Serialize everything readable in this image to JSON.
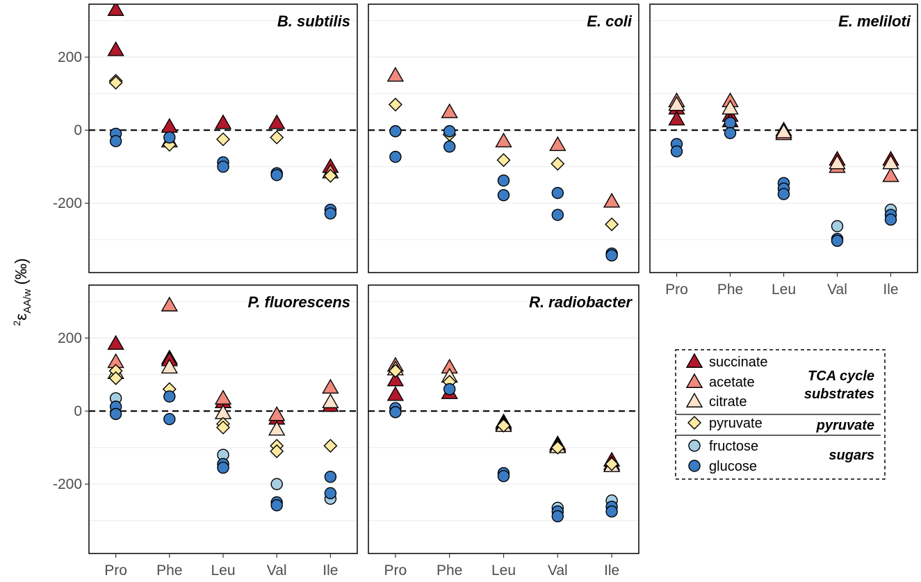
{
  "chart_data": {
    "type": "scatter",
    "ylabel": {
      "base": "2",
      "symbol": "ε",
      "sub": "AA/w",
      "unit": "(‰)"
    },
    "categories": [
      "Pro",
      "Phe",
      "Leu",
      "Val",
      "Ile"
    ],
    "ylim": [
      -390,
      345
    ],
    "yticks": [
      200,
      0,
      -200
    ],
    "ytick_labels": [
      "200",
      "0",
      "-200"
    ],
    "reference_line": 0,
    "colors": {
      "succinate": "#b2182b",
      "acetate": "#ef8a7c",
      "citrate": "#fde3cc",
      "pyruvate": "#fde9a1",
      "fructose": "#a6cee3",
      "glucose": "#3a7cc4"
    },
    "series_order": [
      "succinate",
      "acetate",
      "citrate",
      "pyruvate",
      "fructose",
      "glucose"
    ],
    "legend": {
      "items": [
        {
          "key": "succinate",
          "label": "succinate",
          "shape": "triangle"
        },
        {
          "key": "acetate",
          "label": "acetate",
          "shape": "triangle"
        },
        {
          "key": "citrate",
          "label": "citrate",
          "shape": "triangle"
        },
        {
          "key": "pyruvate",
          "label": "pyruvate",
          "shape": "diamond"
        },
        {
          "key": "fructose",
          "label": "fructose",
          "shape": "circle"
        },
        {
          "key": "glucose",
          "label": "glucose",
          "shape": "circle"
        }
      ],
      "groups": [
        {
          "lines": [
            "TCA cycle",
            "substrates"
          ]
        },
        {
          "lines": [
            "pyruvate"
          ]
        },
        {
          "lines": [
            "sugars"
          ]
        }
      ]
    },
    "panels": [
      {
        "title": "B. subtilis",
        "x_labels_shown": false,
        "points": {
          "succinate": [
            [
              330,
              220
            ],
            [
              10
            ],
            [
              20
            ],
            [
              20
            ],
            [
              -100
            ]
          ],
          "acetate": [
            [],
            [
              -30
            ],
            [],
            [],
            [
              -115
            ]
          ],
          "citrate": [
            [],
            [],
            [],
            [],
            []
          ],
          "pyruvate": [
            [
              135,
              130
            ],
            [
              -40
            ],
            [
              -25
            ],
            [
              -20
            ],
            [
              -125
            ]
          ],
          "fructose": [
            [],
            [],
            [],
            [],
            []
          ],
          "glucose": [
            [
              -10,
              -30
            ],
            [
              -20
            ],
            [
              -88,
              -100
            ],
            [
              -118,
              -123
            ],
            [
              -218,
              -228
            ]
          ]
        }
      },
      {
        "title": "E. coli",
        "x_labels_shown": false,
        "points": {
          "succinate": [
            [],
            [],
            [],
            [],
            []
          ],
          "acetate": [
            [
              150
            ],
            [
              50
            ],
            [
              -30
            ],
            [
              -40
            ],
            [
              -195
            ]
          ],
          "citrate": [
            [],
            [],
            [],
            [],
            []
          ],
          "pyruvate": [
            [
              70
            ],
            [
              -12
            ],
            [
              -82
            ],
            [
              -92
            ],
            [
              -258
            ]
          ],
          "fructose": [
            [],
            [],
            [],
            [],
            []
          ],
          "glucose": [
            [
              -3,
              -73
            ],
            [
              -3,
              -45
            ],
            [
              -138,
              -178
            ],
            [
              -172,
              -232
            ],
            [
              -338,
              -343
            ]
          ]
        }
      },
      {
        "title": "E. meliloti",
        "x_labels_shown": true,
        "points": {
          "succinate": [
            [
              60,
              30
            ],
            [
              40,
              25
            ],
            [
              0
            ],
            [
              -80
            ],
            [
              -80
            ]
          ],
          "acetate": [
            [
              80
            ],
            [
              80
            ],
            [
              -10
            ],
            [
              -100
            ],
            [
              -125
            ]
          ],
          "citrate": [
            [
              70
            ],
            [
              60
            ],
            [
              -5
            ],
            [
              -90
            ],
            [
              -90
            ]
          ],
          "pyruvate": [
            [],
            [],
            [],
            [],
            []
          ],
          "fructose": [
            [],
            [],
            [],
            [
              -263
            ],
            [
              -218
            ]
          ],
          "glucose": [
            [
              -38,
              -58
            ],
            [
              20,
              -8
            ],
            [
              -145,
              -160,
              -175
            ],
            [
              -298,
              -303
            ],
            [
              -232,
              -245
            ]
          ]
        }
      },
      {
        "title": "P. fluorescens",
        "x_labels_shown": true,
        "points": {
          "succinate": [
            [
              185
            ],
            [
              145,
              140
            ],
            [
              25
            ],
            [
              -20
            ],
            [
              15
            ]
          ],
          "acetate": [
            [
              135
            ],
            [
              290
            ],
            [
              35
            ],
            [
              -10
            ],
            [
              65
            ]
          ],
          "citrate": [
            [
              105
            ],
            [
              120
            ],
            [
              -5
            ],
            [
              -50
            ],
            [
              25
            ]
          ],
          "pyruvate": [
            [
              110,
              90
            ],
            [
              60
            ],
            [
              -35,
              -45
            ],
            [
              -95,
              -110
            ],
            [
              -95
            ]
          ],
          "fructose": [
            [
              35
            ],
            [],
            [
              -120
            ],
            [
              -200
            ],
            [
              -240
            ]
          ],
          "glucose": [
            [
              12,
              -8
            ],
            [
              40,
              -22
            ],
            [
              -145,
              -155
            ],
            [
              -250,
              -258
            ],
            [
              -180,
              -225
            ]
          ]
        }
      },
      {
        "title": "R. radiobacter",
        "x_labels_shown": true,
        "points": {
          "succinate": [
            [
              85,
              45
            ],
            [
              50
            ],
            [
              -30
            ],
            [
              -90
            ],
            [
              -135
            ]
          ],
          "acetate": [
            [
              125
            ],
            [
              120
            ],
            [
              -35
            ],
            [
              -95
            ],
            [
              -145
            ]
          ],
          "citrate": [
            [
              115
            ],
            [
              95
            ],
            [
              -40
            ],
            [
              -98
            ],
            [
              -150
            ]
          ],
          "pyruvate": [
            [
              110
            ],
            [
              80
            ],
            [
              -40
            ],
            [
              -100
            ],
            [
              -145
            ]
          ],
          "fructose": [
            [],
            [],
            [],
            [
              -265
            ],
            [
              -245
            ]
          ],
          "glucose": [
            [
              8,
              -3
            ],
            [
              60
            ],
            [
              -170,
              -178
            ],
            [
              -275,
              -288
            ],
            [
              -262,
              -275
            ]
          ]
        }
      }
    ]
  }
}
